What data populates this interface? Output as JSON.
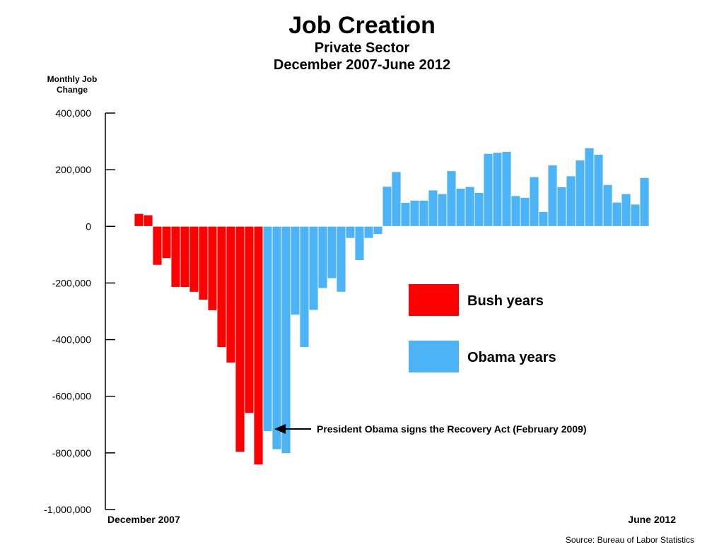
{
  "chart_data": {
    "type": "bar",
    "title": "Job Creation",
    "subtitle": [
      "Private Sector",
      "December 2007-June 2012"
    ],
    "ylabel": "Monthly Job Change",
    "ylim": [
      -1000000,
      400000
    ],
    "yticks": [
      400000,
      200000,
      0,
      -200000,
      -400000,
      -600000,
      -800000,
      -1000000
    ],
    "ytick_labels": [
      "400,000",
      "200,000",
      "0",
      "-200,000",
      "-400,000",
      "-600,000",
      "-800,000",
      "-1,000,000"
    ],
    "x_start_label": "December 2007",
    "x_end_label": "June 2012",
    "grid": false,
    "legend_position": "right",
    "series": [
      {
        "name": "Bush years",
        "color": "#ff0000",
        "values": [
          45000,
          40000,
          -137000,
          -113000,
          -215000,
          -215000,
          -232000,
          -260000,
          -297000,
          -427000,
          -482000,
          -797000,
          -660000,
          -842000
        ]
      },
      {
        "name": "Obama years",
        "color": "#4db3f7",
        "values": [
          -724000,
          -788000,
          -802000,
          -313000,
          -427000,
          -296000,
          -219000,
          -184000,
          -232000,
          -42000,
          -120000,
          -42000,
          -28000,
          141000,
          193000,
          84000,
          92000,
          92000,
          128000,
          115000,
          196000,
          134000,
          140000,
          119000,
          257000,
          261000,
          264000,
          108000,
          102000,
          175000,
          52000,
          216000,
          139000,
          178000,
          234000,
          277000,
          254000,
          147000,
          85000,
          115000,
          78000,
          172000
        ]
      }
    ],
    "annotation": "President Obama signs the Recovery Act (February 2009)",
    "annotation_target": {
      "series": 1,
      "index": 0
    }
  },
  "source": "Source: Bureau of Labor Statistics"
}
